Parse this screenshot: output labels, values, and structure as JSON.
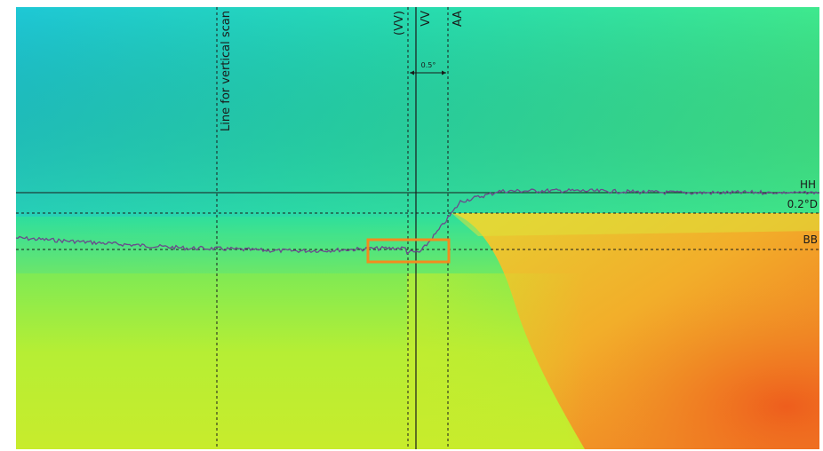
{
  "labels": {
    "vertical_scan": "Line for vertical scan",
    "vv_paren": "(VV)",
    "vv": "VV",
    "aa": "AA",
    "angle": "0.5°",
    "hh": "HH",
    "d02": "0.2°D",
    "bb": "BB"
  },
  "colors": {
    "profile_line": "#6a4a8c",
    "highlight_box": "#f28c1e",
    "reference_lines": "#1a1a1a",
    "upper_left": "#1ec8d6",
    "upper_right": "#3fea86",
    "lower_left": "#c4ee2e",
    "lower_right": "#f06a20"
  }
}
